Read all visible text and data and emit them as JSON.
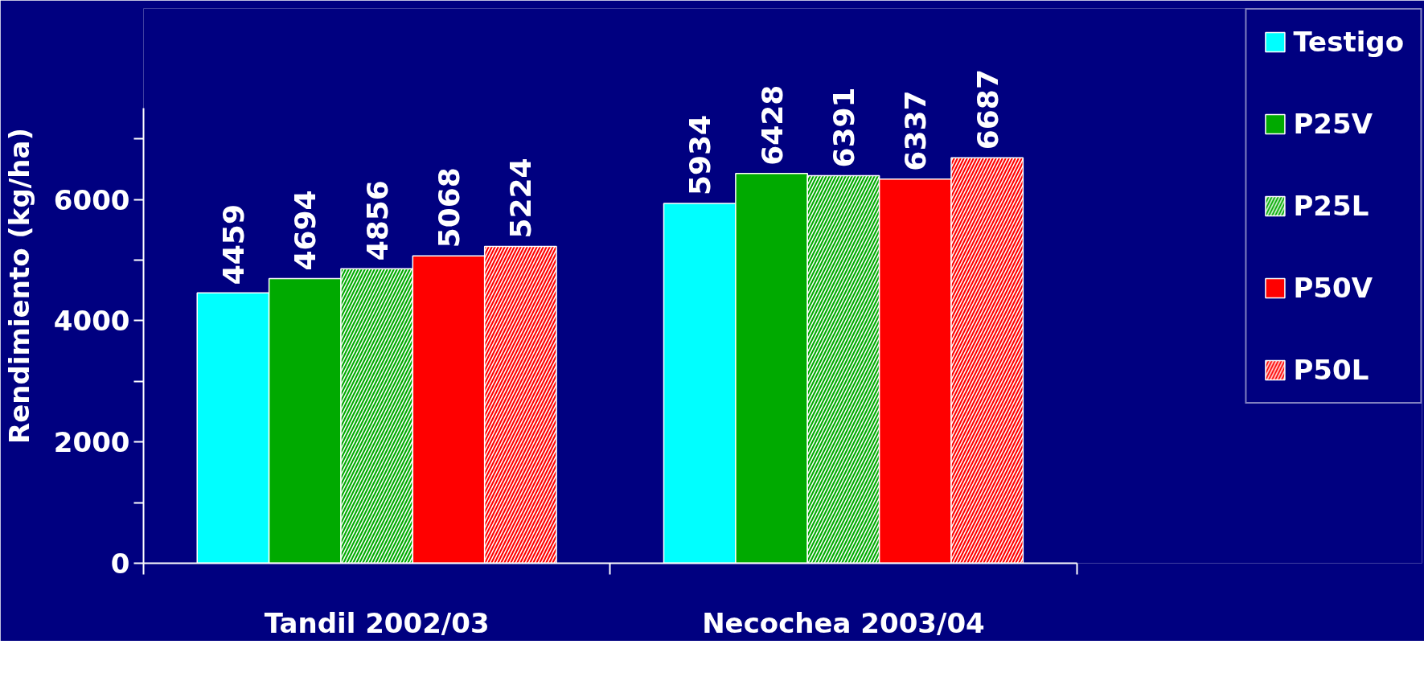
{
  "chart_data": {
    "type": "bar",
    "ylabel": "Rendimiento (kg/ha)",
    "categories": [
      "Tandil 2002/03",
      "Necochea 2003/04"
    ],
    "series": [
      {
        "name": "Testigo",
        "color": "#00ffff",
        "values": [
          4459,
          5934
        ]
      },
      {
        "name": "P25V",
        "color": "#00aa00",
        "values": [
          4694,
          6428
        ]
      },
      {
        "name": "P25L",
        "color": "#00aa00",
        "values": [
          4856,
          6391
        ]
      },
      {
        "name": "P50V",
        "color": "#ff0000",
        "values": [
          5068,
          6337
        ]
      },
      {
        "name": "P50L",
        "color": "#ff0000",
        "values": [
          5224,
          6687
        ]
      }
    ],
    "ylim": [
      0,
      7500
    ],
    "yticks": [
      0,
      {
        "value": 1000,
        "label": null
      },
      2000,
      {
        "value": 3000,
        "label": null
      },
      4000,
      {
        "value": 5000,
        "label": null
      },
      6000,
      {
        "value": 7000,
        "label": null
      }
    ],
    "data_labels": true,
    "legend": "right",
    "grid": false
  }
}
